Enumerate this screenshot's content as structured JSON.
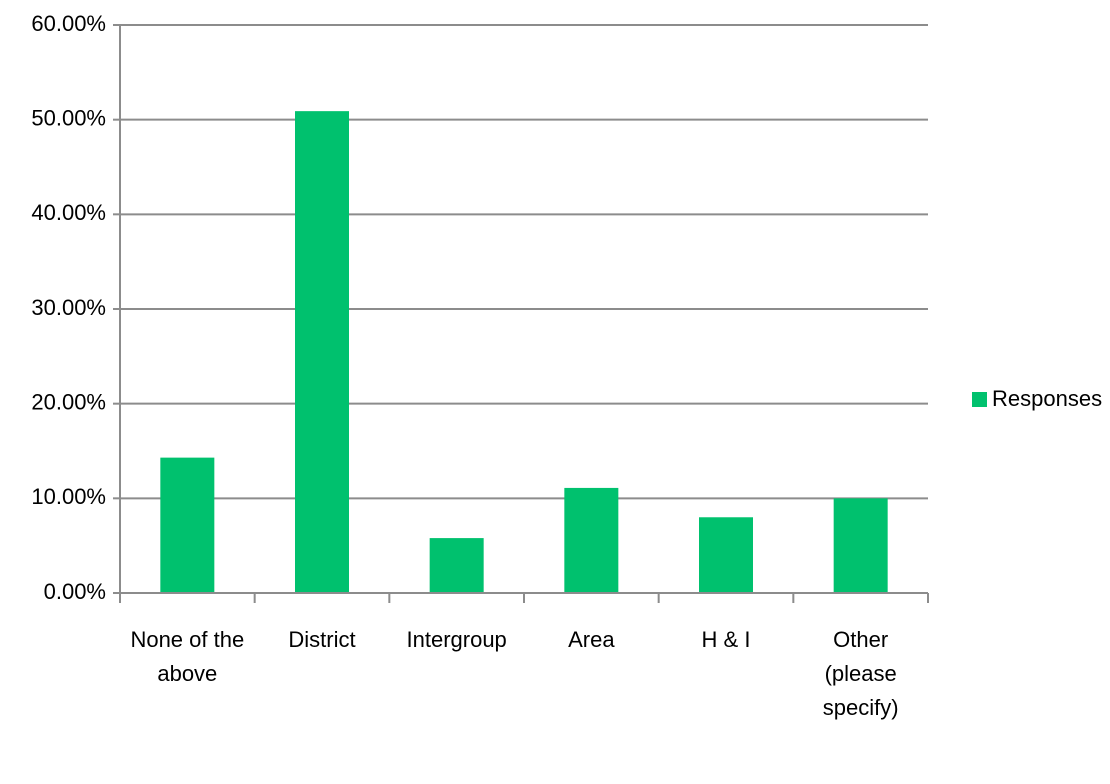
{
  "chart_data": {
    "type": "bar",
    "categories": [
      "None of the above",
      "District",
      "Intergroup",
      "Area",
      "H & I",
      "Other (please specify)"
    ],
    "series": [
      {
        "name": "Responses",
        "color": "#00c16e",
        "values": [
          14.3,
          50.9,
          5.8,
          11.1,
          8.0,
          10.0
        ]
      }
    ],
    "ylim": [
      0,
      60
    ],
    "yticks": [
      {
        "value": 0,
        "label": "0.00%"
      },
      {
        "value": 10,
        "label": "10.00%"
      },
      {
        "value": 20,
        "label": "20.00%"
      },
      {
        "value": 30,
        "label": "30.00%"
      },
      {
        "value": 40,
        "label": "40.00%"
      },
      {
        "value": 50,
        "label": "50.00%"
      },
      {
        "value": 60,
        "label": "60.00%"
      }
    ],
    "grid": true,
    "legend": "right"
  }
}
